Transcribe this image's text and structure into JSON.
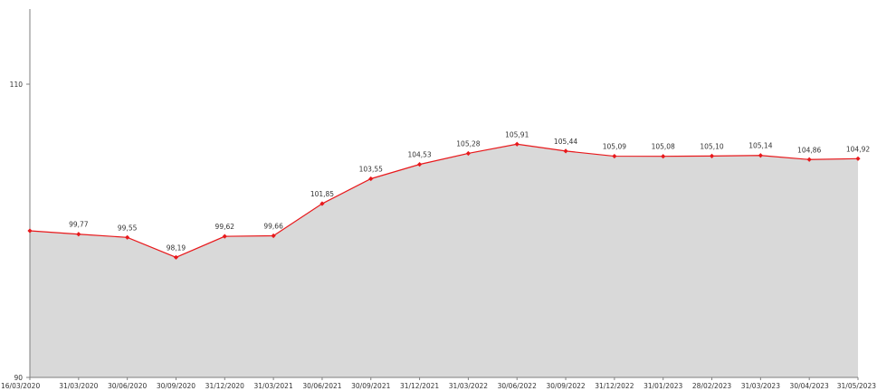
{
  "chart_data": {
    "type": "area",
    "title": "",
    "xlabel": "",
    "ylabel": "",
    "ylim": [
      90,
      115
    ],
    "yticks": [
      90,
      110
    ],
    "grid": false,
    "legend": "none",
    "colors": {
      "area_fill": "#d9d9d9",
      "line": "#e8191c",
      "marker": "#e8191c",
      "axis": "#7f7f7f"
    },
    "x": [
      "16/03/2020",
      "31/03/2020",
      "30/06/2020",
      "30/09/2020",
      "31/12/2020",
      "31/03/2021",
      "30/06/2021",
      "30/09/2021",
      "31/12/2021",
      "31/03/2022",
      "30/06/2022",
      "30/09/2022",
      "31/12/2022",
      "31/01/2023",
      "28/02/2023",
      "31/03/2023",
      "30/04/2023",
      "31/05/2023"
    ],
    "values": [
      100.0,
      99.77,
      99.55,
      98.19,
      99.62,
      99.66,
      101.85,
      103.55,
      104.53,
      105.28,
      105.91,
      105.44,
      105.09,
      105.08,
      105.1,
      105.14,
      104.86,
      104.92
    ],
    "data_labels": [
      "",
      "99,77",
      "99,55",
      "98,19",
      "99,62",
      "99,66",
      "101,85",
      "103,55",
      "104,53",
      "105,28",
      "105,91",
      "105,44",
      "105,09",
      "105,08",
      "105,10",
      "105,14",
      "104,86",
      "104,92"
    ],
    "ytick_labels": [
      "90",
      "110"
    ]
  }
}
